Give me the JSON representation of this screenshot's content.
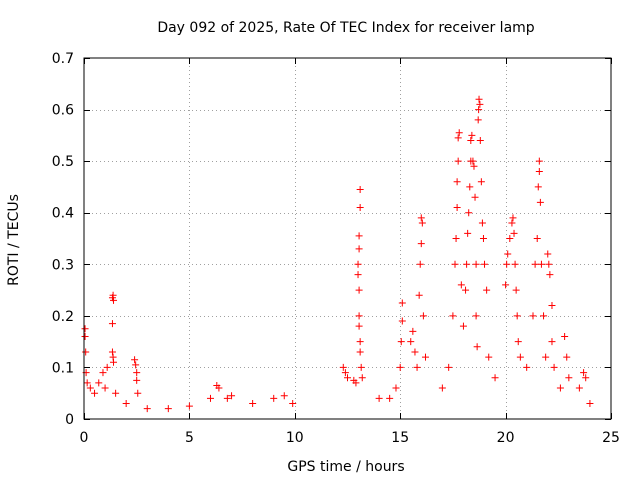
{
  "chart_data": {
    "type": "scatter",
    "title": "Day 092 of 2025, Rate Of TEC Index for receiver lamp",
    "xlabel": "GPS time / hours",
    "ylabel": "ROTI / TECUs",
    "xlim": [
      0,
      25
    ],
    "ylim": [
      0,
      0.7
    ],
    "xticks": [
      "0",
      "5",
      "10",
      "15",
      "20",
      "25"
    ],
    "yticks": [
      "0",
      "0.1",
      "0.2",
      "0.3",
      "0.4",
      "0.5",
      "0.6",
      "0.7"
    ],
    "grid": true,
    "marker": "+",
    "color": "#ff0000",
    "series": [
      {
        "name": "ROTI",
        "points": [
          [
            0.05,
            0.175
          ],
          [
            0.05,
            0.16
          ],
          [
            0.08,
            0.13
          ],
          [
            0.1,
            0.09
          ],
          [
            0.15,
            0.07
          ],
          [
            0.3,
            0.06
          ],
          [
            0.5,
            0.05
          ],
          [
            0.7,
            0.07
          ],
          [
            0.9,
            0.09
          ],
          [
            1.0,
            0.06
          ],
          [
            1.1,
            0.1
          ],
          [
            1.35,
            0.235
          ],
          [
            1.38,
            0.24
          ],
          [
            1.4,
            0.23
          ],
          [
            1.35,
            0.185
          ],
          [
            1.35,
            0.13
          ],
          [
            1.38,
            0.12
          ],
          [
            1.4,
            0.11
          ],
          [
            1.5,
            0.05
          ],
          [
            2.0,
            0.03
          ],
          [
            2.4,
            0.115
          ],
          [
            2.45,
            0.105
          ],
          [
            2.5,
            0.09
          ],
          [
            2.5,
            0.075
          ],
          [
            2.55,
            0.05
          ],
          [
            3.0,
            0.02
          ],
          [
            4.0,
            0.02
          ],
          [
            5.0,
            0.025
          ],
          [
            6.0,
            0.04
          ],
          [
            6.3,
            0.065
          ],
          [
            6.4,
            0.06
          ],
          [
            6.8,
            0.04
          ],
          [
            7.0,
            0.045
          ],
          [
            8.0,
            0.03
          ],
          [
            9.0,
            0.04
          ],
          [
            9.5,
            0.045
          ],
          [
            9.9,
            0.03
          ],
          [
            12.3,
            0.1
          ],
          [
            12.4,
            0.09
          ],
          [
            12.5,
            0.08
          ],
          [
            12.8,
            0.075
          ],
          [
            12.9,
            0.07
          ],
          [
            13.0,
            0.3
          ],
          [
            13.0,
            0.28
          ],
          [
            13.05,
            0.33
          ],
          [
            13.05,
            0.355
          ],
          [
            13.1,
            0.41
          ],
          [
            13.1,
            0.445
          ],
          [
            13.05,
            0.25
          ],
          [
            13.05,
            0.2
          ],
          [
            13.05,
            0.18
          ],
          [
            13.1,
            0.15
          ],
          [
            13.1,
            0.13
          ],
          [
            13.15,
            0.1
          ],
          [
            13.2,
            0.08
          ],
          [
            14.0,
            0.04
          ],
          [
            14.5,
            0.04
          ],
          [
            14.8,
            0.06
          ],
          [
            15.0,
            0.1
          ],
          [
            15.05,
            0.15
          ],
          [
            15.1,
            0.19
          ],
          [
            15.1,
            0.225
          ],
          [
            15.5,
            0.15
          ],
          [
            15.6,
            0.17
          ],
          [
            15.7,
            0.13
          ],
          [
            15.8,
            0.1
          ],
          [
            15.9,
            0.24
          ],
          [
            15.95,
            0.3
          ],
          [
            16.0,
            0.34
          ],
          [
            16.05,
            0.38
          ],
          [
            16.0,
            0.39
          ],
          [
            16.1,
            0.2
          ],
          [
            16.2,
            0.12
          ],
          [
            17.0,
            0.06
          ],
          [
            17.3,
            0.1
          ],
          [
            17.5,
            0.2
          ],
          [
            17.6,
            0.3
          ],
          [
            17.65,
            0.35
          ],
          [
            17.7,
            0.41
          ],
          [
            17.7,
            0.46
          ],
          [
            17.75,
            0.5
          ],
          [
            17.75,
            0.545
          ],
          [
            17.8,
            0.555
          ],
          [
            17.9,
            0.26
          ],
          [
            18.0,
            0.18
          ],
          [
            18.1,
            0.25
          ],
          [
            18.15,
            0.3
          ],
          [
            18.2,
            0.36
          ],
          [
            18.25,
            0.4
          ],
          [
            18.3,
            0.45
          ],
          [
            18.35,
            0.5
          ],
          [
            18.35,
            0.54
          ],
          [
            18.4,
            0.55
          ],
          [
            18.45,
            0.5
          ],
          [
            18.5,
            0.49
          ],
          [
            18.55,
            0.43
          ],
          [
            18.6,
            0.3
          ],
          [
            18.6,
            0.2
          ],
          [
            18.65,
            0.14
          ],
          [
            18.7,
            0.58
          ],
          [
            18.72,
            0.6
          ],
          [
            18.74,
            0.62
          ],
          [
            18.78,
            0.61
          ],
          [
            18.8,
            0.54
          ],
          [
            18.85,
            0.46
          ],
          [
            18.9,
            0.38
          ],
          [
            18.95,
            0.35
          ],
          [
            19.0,
            0.3
          ],
          [
            19.1,
            0.25
          ],
          [
            19.2,
            0.12
          ],
          [
            19.5,
            0.08
          ],
          [
            20.0,
            0.26
          ],
          [
            20.05,
            0.3
          ],
          [
            20.1,
            0.32
          ],
          [
            20.2,
            0.35
          ],
          [
            20.3,
            0.38
          ],
          [
            20.35,
            0.39
          ],
          [
            20.4,
            0.36
          ],
          [
            20.45,
            0.3
          ],
          [
            20.5,
            0.25
          ],
          [
            20.55,
            0.2
          ],
          [
            20.6,
            0.15
          ],
          [
            20.7,
            0.12
          ],
          [
            21.0,
            0.1
          ],
          [
            21.3,
            0.2
          ],
          [
            21.4,
            0.3
          ],
          [
            21.5,
            0.35
          ],
          [
            21.55,
            0.45
          ],
          [
            21.6,
            0.48
          ],
          [
            21.6,
            0.5
          ],
          [
            21.65,
            0.42
          ],
          [
            21.7,
            0.3
          ],
          [
            21.8,
            0.2
          ],
          [
            21.9,
            0.12
          ],
          [
            22.0,
            0.32
          ],
          [
            22.05,
            0.3
          ],
          [
            22.1,
            0.28
          ],
          [
            22.2,
            0.22
          ],
          [
            22.2,
            0.15
          ],
          [
            22.3,
            0.1
          ],
          [
            22.6,
            0.06
          ],
          [
            22.8,
            0.16
          ],
          [
            22.9,
            0.12
          ],
          [
            23.0,
            0.08
          ],
          [
            23.5,
            0.06
          ],
          [
            23.7,
            0.09
          ],
          [
            23.8,
            0.08
          ],
          [
            24.0,
            0.03
          ]
        ]
      }
    ]
  }
}
